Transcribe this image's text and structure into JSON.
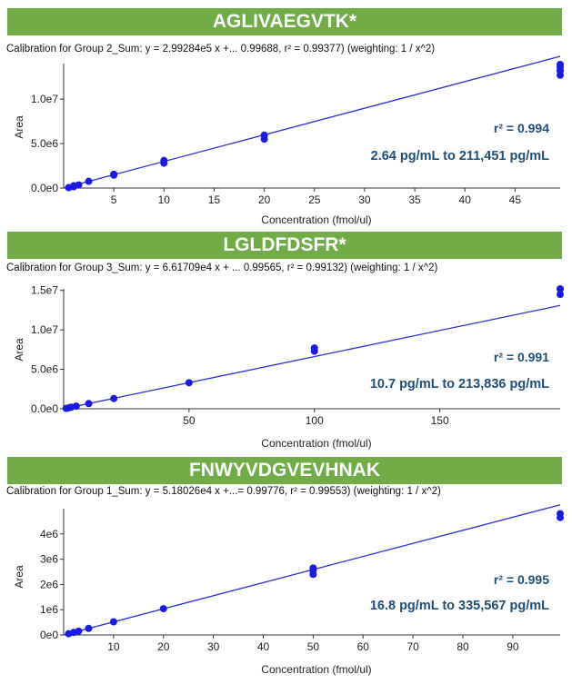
{
  "chart_data": [
    {
      "type": "scatter",
      "title": "AGLIVAEGVTK*",
      "subtitle": "Calibration for Group 2_Sum: y = 2.99284e5 x +... 0.99688, r² = 0.99377)  (weighting: 1 / x^2)",
      "xlabel": "Concentration (fmol/ul)",
      "ylabel": "Area",
      "xlim": [
        0,
        49.5
      ],
      "ylim": [
        0,
        14000000
      ],
      "xticks": [
        5,
        10,
        15,
        20,
        25,
        30,
        35,
        40,
        45
      ],
      "xtick_labels": [
        "5",
        "10",
        "15",
        "20",
        "25",
        "30",
        "35",
        "40",
        "45"
      ],
      "yticks": [
        0,
        5000000,
        10000000
      ],
      "ytick_labels": [
        "0.0e0",
        "5.0e6",
        "1.0e7"
      ],
      "fit_line": {
        "slope": 299284,
        "intercept": 0
      },
      "points": {
        "x": [
          0.5,
          1,
          1,
          1.5,
          2.5,
          5,
          5,
          10,
          10,
          20,
          20,
          49.5,
          49.5,
          49.5,
          49.5
        ],
        "y": [
          50000,
          150000,
          250000,
          350000,
          750000,
          1450000,
          1550000,
          2800000,
          3100000,
          5500000,
          5950000,
          12700000,
          13200000,
          13600000,
          13900000
        ]
      },
      "annotation_r2": "r² = 0.994",
      "annotation_range": "2.64 pg/mL to  211,451 pg/mL"
    },
    {
      "type": "scatter",
      "title": "LGLDFDSFR*",
      "subtitle": "Calibration for Group 3_Sum: y = 6.61709e4 x + ... 0.99565, r² = 0.99132)  (weighting: 1 / x^2)",
      "xlabel": "Concentration (fmol/ul)",
      "ylabel": "Area",
      "xlim": [
        0,
        198
      ],
      "ylim": [
        0,
        15200000
      ],
      "xticks": [
        50,
        100,
        150
      ],
      "xtick_labels": [
        "50",
        "100",
        "150"
      ],
      "yticks": [
        0,
        5000000,
        10000000,
        15000000
      ],
      "ytick_labels": [
        "0.0e0",
        "5.0e6",
        "1.0e7",
        "1.5e7"
      ],
      "fit_line": {
        "slope": 66170.9,
        "intercept": 0
      },
      "points": {
        "x": [
          1,
          2,
          3,
          5,
          10,
          20,
          50,
          100,
          100,
          198,
          198
        ],
        "y": [
          50000,
          120000,
          200000,
          330000,
          660000,
          1300000,
          3300000,
          7300000,
          7700000,
          14500000,
          15200000
        ]
      },
      "annotation_r2": "r² = 0.991",
      "annotation_range": "10.7 pg/mL to 213,836 pg/mL"
    },
    {
      "type": "scatter",
      "title": "FNWYVDGVEVHNAK",
      "subtitle": "Calibration for Group 1_Sum: y = 5.18026e4 x +...= 0.99776, r² = 0.99553)  (weighting: 1 / x^2)",
      "xlabel": "Concentration (fmol/ul)",
      "ylabel": "Area",
      "xlim": [
        0,
        99.5
      ],
      "ylim": [
        0,
        5000000
      ],
      "xticks": [
        10,
        20,
        30,
        40,
        50,
        60,
        70,
        80,
        90
      ],
      "xtick_labels": [
        "10",
        "20",
        "30",
        "40",
        "50",
        "60",
        "70",
        "80",
        "90"
      ],
      "yticks": [
        0,
        1000000,
        2000000,
        3000000,
        4000000
      ],
      "ytick_labels": [
        "0e0",
        "1e6",
        "2e6",
        "3e6",
        "4e6"
      ],
      "fit_line": {
        "slope": 51802.6,
        "intercept": 0
      },
      "points": {
        "x": [
          1,
          2,
          3,
          5,
          10,
          20,
          50,
          50,
          50,
          99.5,
          99.5
        ],
        "y": [
          50000,
          100000,
          150000,
          260000,
          520000,
          1040000,
          2400000,
          2550000,
          2650000,
          4650000,
          4800000
        ]
      },
      "annotation_r2": "r² = 0.995",
      "annotation_range": "16.8 pg/mL to 335,567 pg/mL"
    }
  ],
  "colors": {
    "banner": "#70ad47",
    "banner_text": "#ffffff",
    "fit_line": "#2d2dd6",
    "points": "#1a1ae6",
    "annotation": "#1f4e79",
    "axis": "#333333"
  }
}
